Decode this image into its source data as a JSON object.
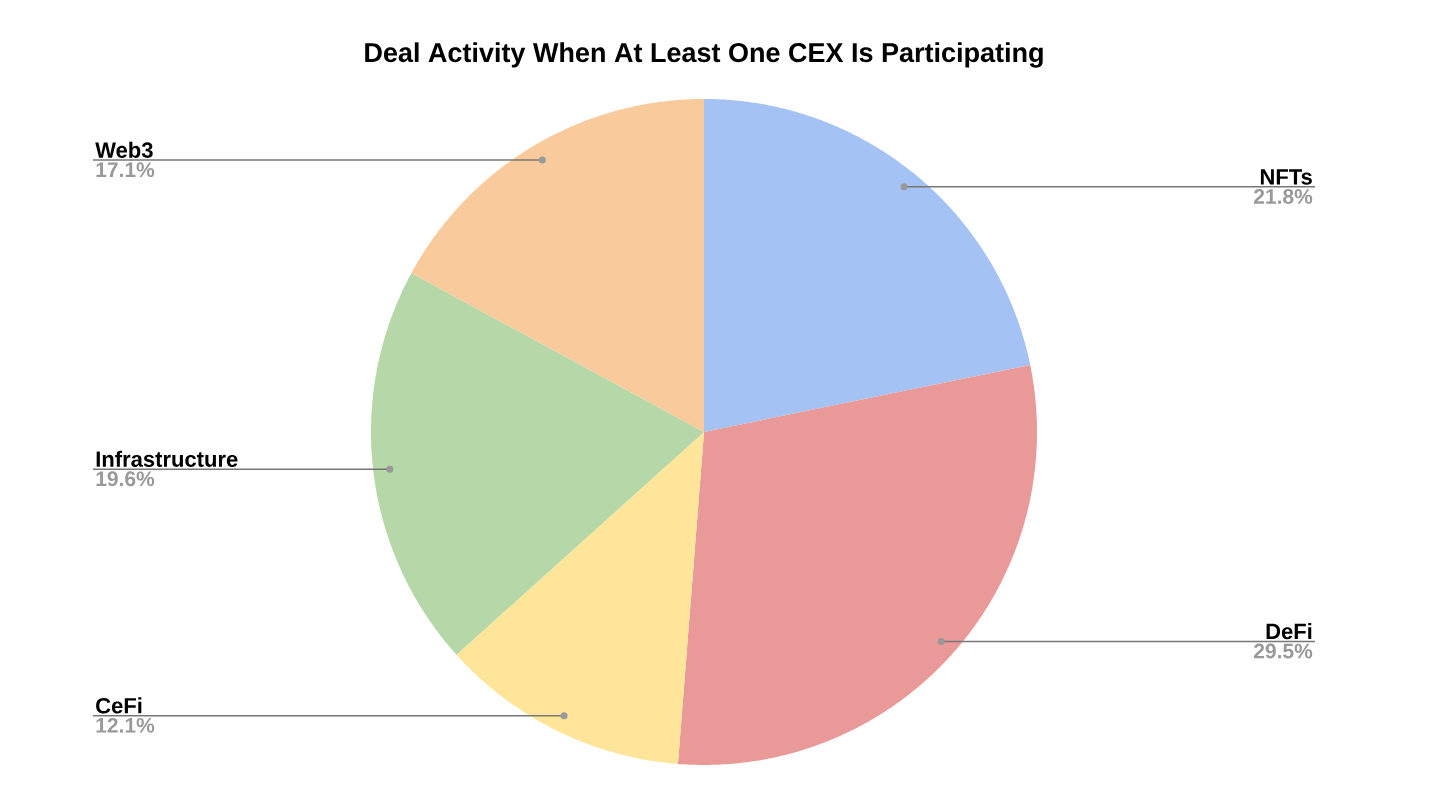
{
  "chart_data": {
    "type": "pie",
    "title": "Deal Activity When At Least One CEX Is Participating",
    "categories": [
      "NFTs",
      "DeFi",
      "CeFi",
      "Infrastructure",
      "Web3"
    ],
    "values": [
      21.8,
      29.5,
      12.1,
      19.6,
      17.1
    ],
    "value_labels": [
      "21.8%",
      "29.5%",
      "12.1%",
      "19.6%",
      "17.1%"
    ],
    "colors": [
      "#a4c2f4",
      "#ea9999",
      "#ffe599",
      "#b6d7a8",
      "#f9cb9c"
    ]
  }
}
